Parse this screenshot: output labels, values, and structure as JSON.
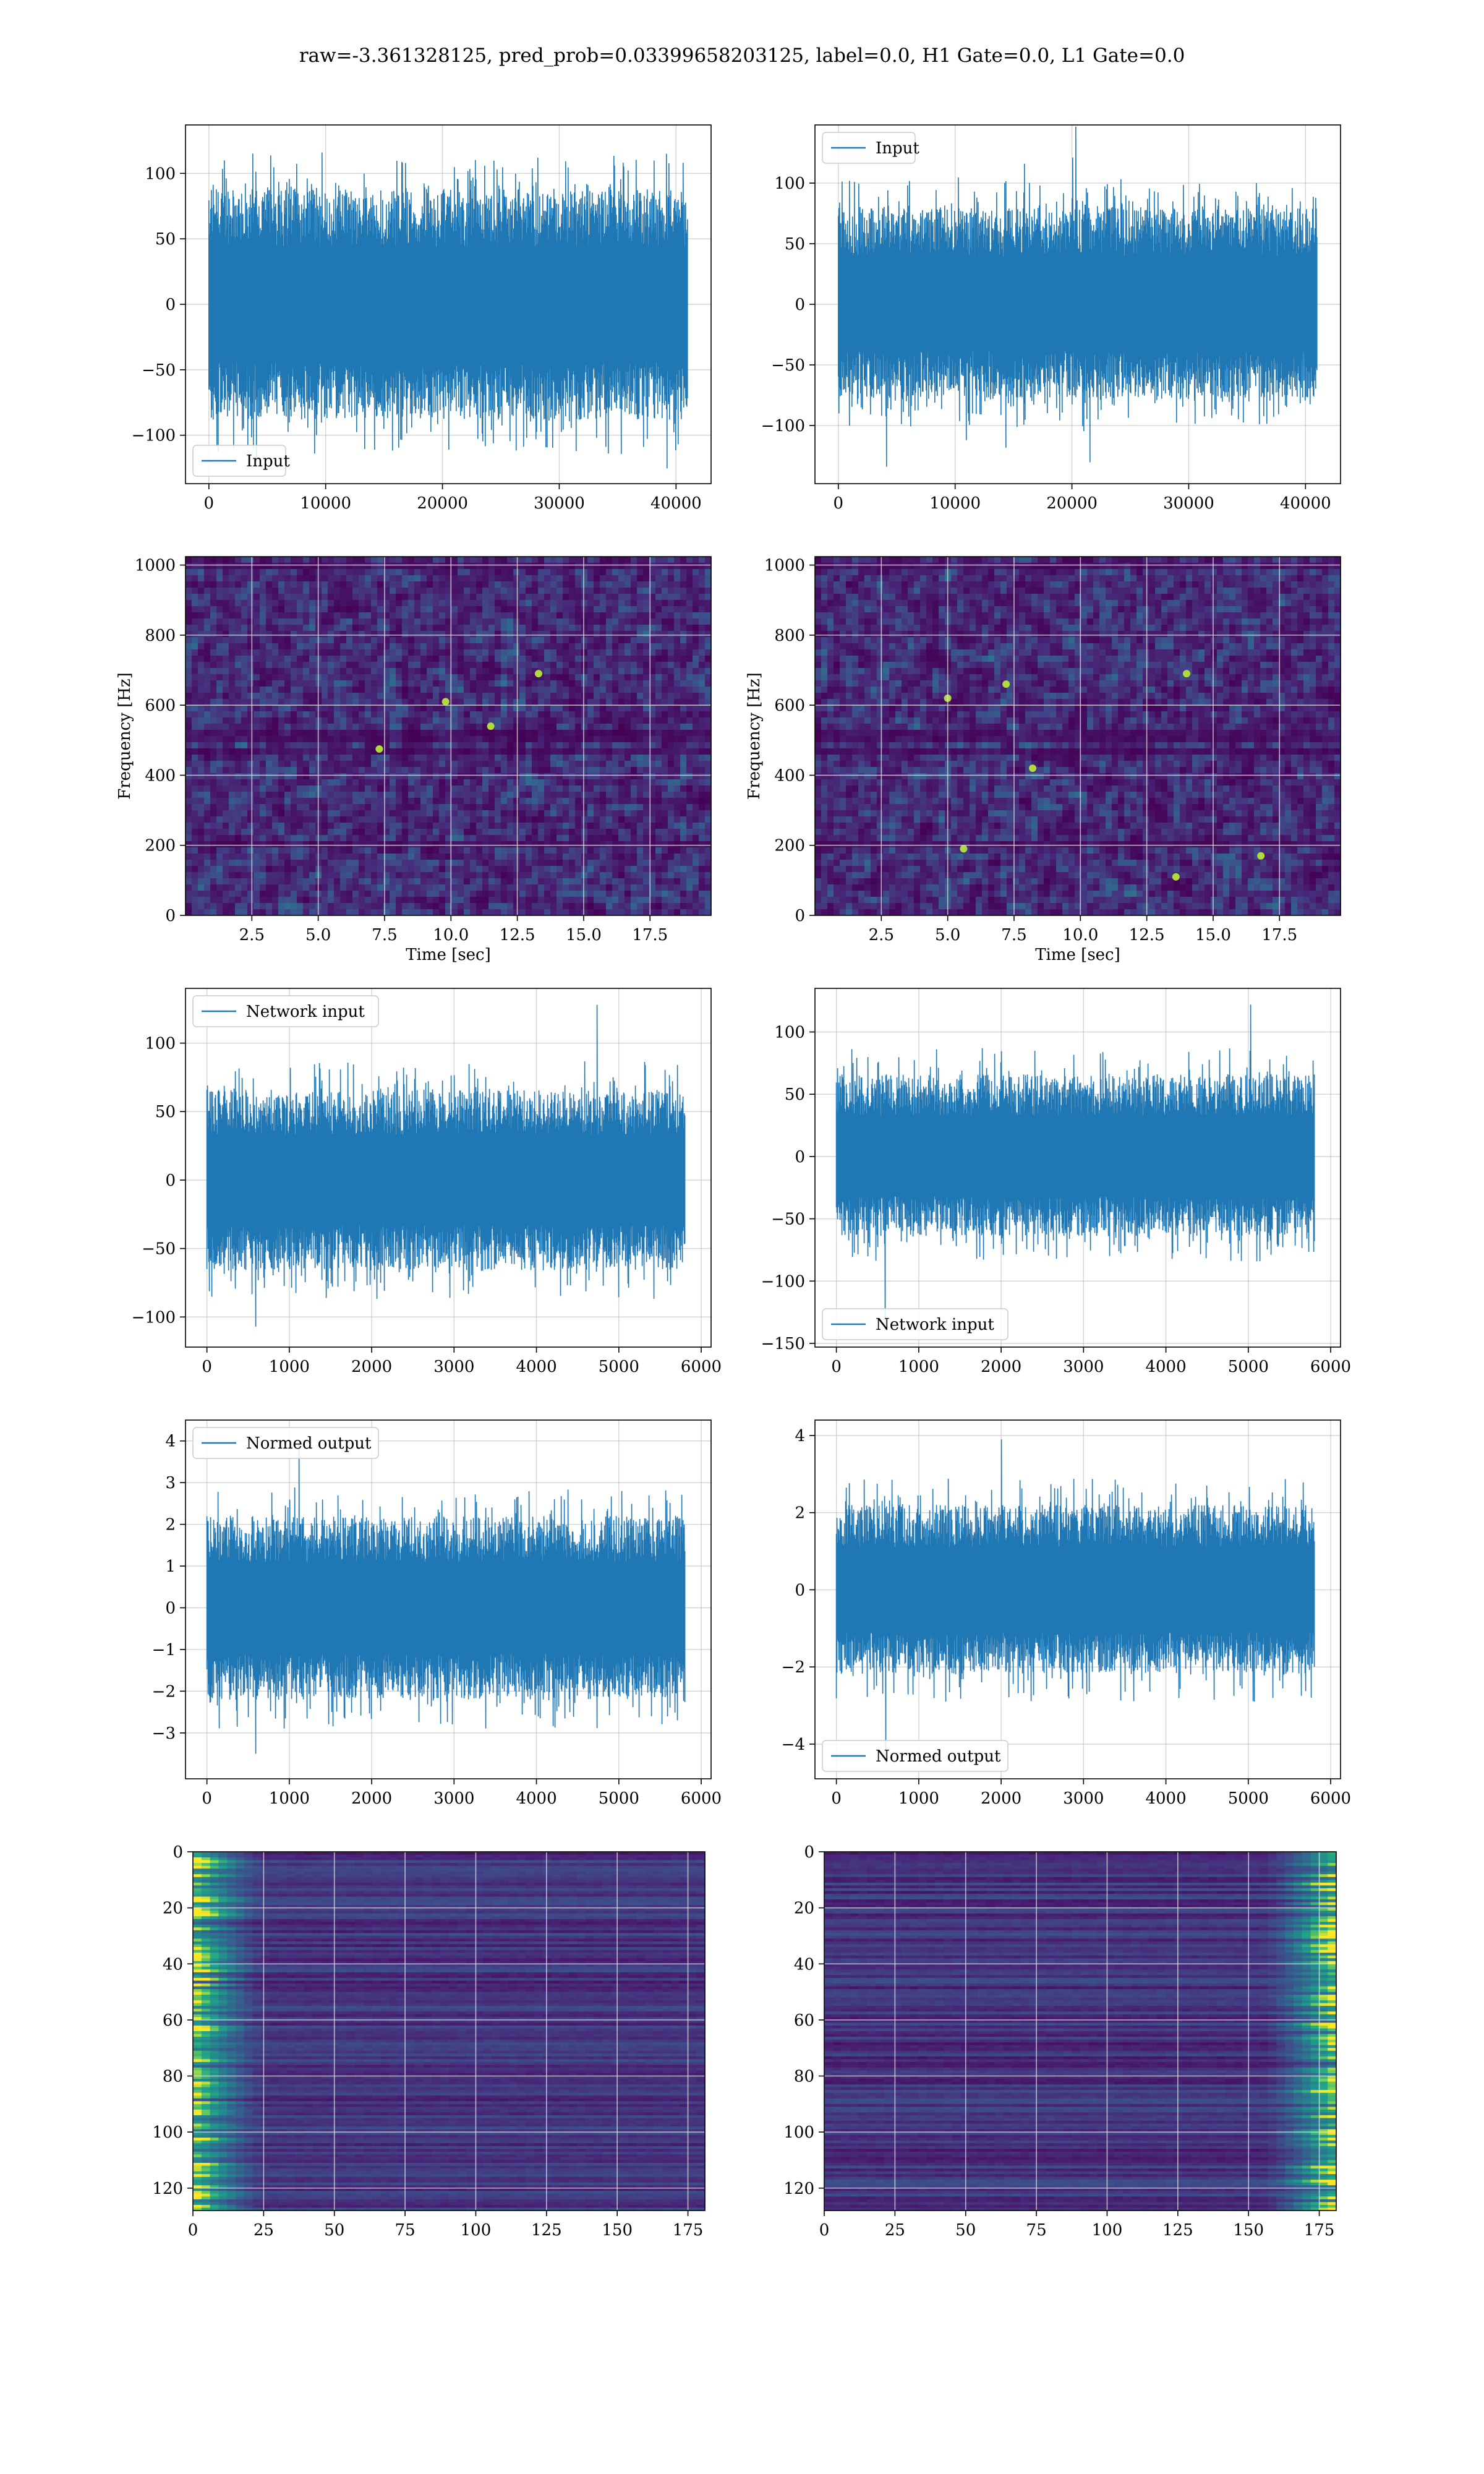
{
  "figure": {
    "title": "raw=-3.361328125, pred_prob=0.03399658203125, label=0.0, H1 Gate=0.0, L1 Gate=0.0"
  },
  "colors": {
    "line": "#1f77b4",
    "grid": "#b0b0b0",
    "viridis_dark": "#440154",
    "viridis_mid": "#21918c",
    "viridis_bright": "#fde725"
  },
  "chart_data": [
    {
      "id": "input_left",
      "type": "line",
      "series": [
        {
          "name": "Input",
          "count": 40960,
          "amplitude_std": 30
        }
      ],
      "xlim": [
        -2000,
        43000
      ],
      "ylim": [
        -137,
        137
      ],
      "xticks": [
        0,
        10000,
        20000,
        30000,
        40000
      ],
      "xtick_labels": [
        "0",
        "10000",
        "20000",
        "30000",
        "40000"
      ],
      "yticks": [
        -100,
        -50,
        0,
        50,
        100
      ],
      "ytick_labels": [
        "−100",
        "−50",
        "0",
        "50",
        "100"
      ],
      "legend": "bottom-left",
      "grid": true,
      "xlabel": "",
      "ylabel": "",
      "noise_seed": 11,
      "envelope": [
        [
          0,
          -80,
          80
        ],
        [
          40960,
          -80,
          80
        ]
      ],
      "peak": [
        -124,
        116
      ]
    },
    {
      "id": "input_right",
      "type": "line",
      "series": [
        {
          "name": "Input",
          "count": 40960,
          "amplitude_std": 30
        }
      ],
      "xlim": [
        -2000,
        43000
      ],
      "ylim": [
        -148,
        148
      ],
      "xticks": [
        0,
        10000,
        20000,
        30000,
        40000
      ],
      "xtick_labels": [
        "0",
        "10000",
        "20000",
        "30000",
        "40000"
      ],
      "yticks": [
        -100,
        -50,
        0,
        50,
        100
      ],
      "ytick_labels": [
        "−100",
        "−50",
        "0",
        "50",
        "100"
      ],
      "legend": "top-left",
      "grid": true,
      "xlabel": "",
      "ylabel": "",
      "noise_seed": 23,
      "envelope": [
        [
          0,
          -70,
          72
        ],
        [
          40960,
          -70,
          72
        ]
      ],
      "peak": [
        -134,
        116
      ]
    },
    {
      "id": "spectrogram_left",
      "type": "heatmap",
      "xlim": [
        0,
        19.8
      ],
      "ylim": [
        0,
        1024
      ],
      "xticks": [
        2.5,
        5.0,
        7.5,
        10.0,
        12.5,
        15.0,
        17.5
      ],
      "xtick_labels": [
        "2.5",
        "5.0",
        "7.5",
        "10.0",
        "12.5",
        "15.0",
        "17.5"
      ],
      "yticks": [
        0,
        200,
        400,
        600,
        800,
        1000
      ],
      "ytick_labels": [
        "0",
        "200",
        "400",
        "600",
        "800",
        "1000"
      ],
      "xlabel": "Time [sec]",
      "ylabel": "Frequency [Hz]",
      "grid": true,
      "colormap": "viridis",
      "dark_bands_hz": [
        1000,
        510,
        470,
        200
      ],
      "hot_spots": [
        [
          9.8,
          610
        ],
        [
          11.5,
          540
        ],
        [
          13.3,
          690
        ],
        [
          7.3,
          475
        ]
      ],
      "noise_seed": 31
    },
    {
      "id": "spectrogram_right",
      "type": "heatmap",
      "xlim": [
        0,
        19.8
      ],
      "ylim": [
        0,
        1024
      ],
      "xticks": [
        2.5,
        5.0,
        7.5,
        10.0,
        12.5,
        15.0,
        17.5
      ],
      "xtick_labels": [
        "2.5",
        "5.0",
        "7.5",
        "10.0",
        "12.5",
        "15.0",
        "17.5"
      ],
      "yticks": [
        0,
        200,
        400,
        600,
        800,
        1000
      ],
      "ytick_labels": [
        "0",
        "200",
        "400",
        "600",
        "800",
        "1000"
      ],
      "xlabel": "Time [sec]",
      "ylabel": "Frequency [Hz]",
      "grid": true,
      "colormap": "viridis",
      "dark_bands_hz": [
        1000,
        510,
        470,
        200
      ],
      "hot_spots": [
        [
          7.2,
          660
        ],
        [
          5.6,
          190
        ],
        [
          8.2,
          420
        ],
        [
          13.6,
          110
        ],
        [
          16.8,
          170
        ],
        [
          14.0,
          690
        ],
        [
          5.0,
          620
        ]
      ],
      "noise_seed": 43
    },
    {
      "id": "network_input_left",
      "type": "line",
      "series": [
        {
          "name": "Network input",
          "count": 5800,
          "amplitude_std": 19
        }
      ],
      "xlim": [
        -260,
        6120
      ],
      "ylim": [
        -122,
        140
      ],
      "xticks": [
        0,
        1000,
        2000,
        3000,
        4000,
        5000,
        6000
      ],
      "xtick_labels": [
        "0",
        "1000",
        "2000",
        "3000",
        "4000",
        "5000",
        "6000"
      ],
      "yticks": [
        -100,
        -50,
        0,
        50,
        100
      ],
      "ytick_labels": [
        "−100",
        "−50",
        "0",
        "50",
        "100"
      ],
      "legend": "top-left",
      "grid": true,
      "xlabel": "",
      "ylabel": "",
      "noise_seed": 57,
      "envelope": [
        [
          0,
          -60,
          60
        ],
        [
          5800,
          -60,
          60
        ]
      ],
      "peak": [
        -107,
        128
      ]
    },
    {
      "id": "network_input_right",
      "type": "line",
      "series": [
        {
          "name": "Network input",
          "count": 5800,
          "amplitude_std": 19
        }
      ],
      "xlim": [
        -260,
        6120
      ],
      "ylim": [
        -153,
        135
      ],
      "xticks": [
        0,
        1000,
        2000,
        3000,
        4000,
        5000,
        6000
      ],
      "xtick_labels": [
        "0",
        "1000",
        "2000",
        "3000",
        "4000",
        "5000",
        "6000"
      ],
      "yticks": [
        -150,
        -100,
        -50,
        0,
        50,
        100
      ],
      "ytick_labels": [
        "−150",
        "−100",
        "−50",
        "0",
        "50",
        "100"
      ],
      "legend": "bottom-left",
      "grid": true,
      "xlabel": "",
      "ylabel": "",
      "noise_seed": 61,
      "envelope": [
        [
          0,
          -58,
          60
        ],
        [
          5800,
          -58,
          60
        ]
      ],
      "peak": [
        -140,
        122
      ]
    },
    {
      "id": "normed_output_left",
      "type": "line",
      "series": [
        {
          "name": "Normed output",
          "count": 5800,
          "amplitude_std": 0.62
        }
      ],
      "xlim": [
        -260,
        6120
      ],
      "ylim": [
        -4.1,
        4.5
      ],
      "xticks": [
        0,
        1000,
        2000,
        3000,
        4000,
        5000,
        6000
      ],
      "xtick_labels": [
        "0",
        "1000",
        "2000",
        "3000",
        "4000",
        "5000",
        "6000"
      ],
      "yticks": [
        -3,
        -2,
        -1,
        0,
        1,
        2,
        3,
        4
      ],
      "ytick_labels": [
        "−3",
        "−2",
        "−1",
        "0",
        "1",
        "2",
        "3",
        "4"
      ],
      "legend": "top-left",
      "grid": true,
      "xlabel": "",
      "ylabel": "",
      "noise_seed": 71,
      "envelope": [
        [
          0,
          -2.0,
          2.0
        ],
        [
          5800,
          -2.0,
          2.0
        ]
      ],
      "peak": [
        -3.5,
        4.0
      ]
    },
    {
      "id": "normed_output_right",
      "type": "line",
      "series": [
        {
          "name": "Normed output",
          "count": 5800,
          "amplitude_std": 0.62
        }
      ],
      "xlim": [
        -260,
        6120
      ],
      "ylim": [
        -4.9,
        4.4
      ],
      "xticks": [
        0,
        1000,
        2000,
        3000,
        4000,
        5000,
        6000
      ],
      "xtick_labels": [
        "0",
        "1000",
        "2000",
        "3000",
        "4000",
        "5000",
        "6000"
      ],
      "yticks": [
        -4,
        -2,
        0,
        2,
        4
      ],
      "ytick_labels": [
        "−4",
        "−2",
        "0",
        "2",
        "4"
      ],
      "legend": "bottom-left",
      "grid": true,
      "xlabel": "",
      "ylabel": "",
      "noise_seed": 83,
      "envelope": [
        [
          0,
          -2.0,
          2.0
        ],
        [
          5800,
          -2.0,
          2.0
        ]
      ],
      "peak": [
        -4.5,
        3.9
      ]
    },
    {
      "id": "feature_map_left",
      "type": "heatmap",
      "xlim": [
        0,
        181
      ],
      "ylim": [
        128,
        0
      ],
      "xticks": [
        0,
        25,
        50,
        75,
        100,
        125,
        150,
        175
      ],
      "xtick_labels": [
        "0",
        "25",
        "50",
        "75",
        "100",
        "125",
        "150",
        "175"
      ],
      "yticks": [
        0,
        20,
        40,
        60,
        80,
        100,
        120
      ],
      "ytick_labels": [
        "0",
        "20",
        "40",
        "60",
        "80",
        "100",
        "120"
      ],
      "grid": true,
      "colormap": "viridis",
      "hot_edge": "left",
      "noise_seed": 97,
      "xlabel": "",
      "ylabel": ""
    },
    {
      "id": "feature_map_right",
      "type": "heatmap",
      "xlim": [
        0,
        181
      ],
      "ylim": [
        128,
        0
      ],
      "xticks": [
        0,
        25,
        50,
        75,
        100,
        125,
        150,
        175
      ],
      "xtick_labels": [
        "0",
        "25",
        "50",
        "75",
        "100",
        "125",
        "150",
        "175"
      ],
      "yticks": [
        0,
        20,
        40,
        60,
        80,
        100,
        120
      ],
      "ytick_labels": [
        "0",
        "20",
        "40",
        "60",
        "80",
        "100",
        "120"
      ],
      "grid": true,
      "colormap": "viridis",
      "hot_edge": "right",
      "noise_seed": 101,
      "xlabel": "",
      "ylabel": ""
    }
  ]
}
